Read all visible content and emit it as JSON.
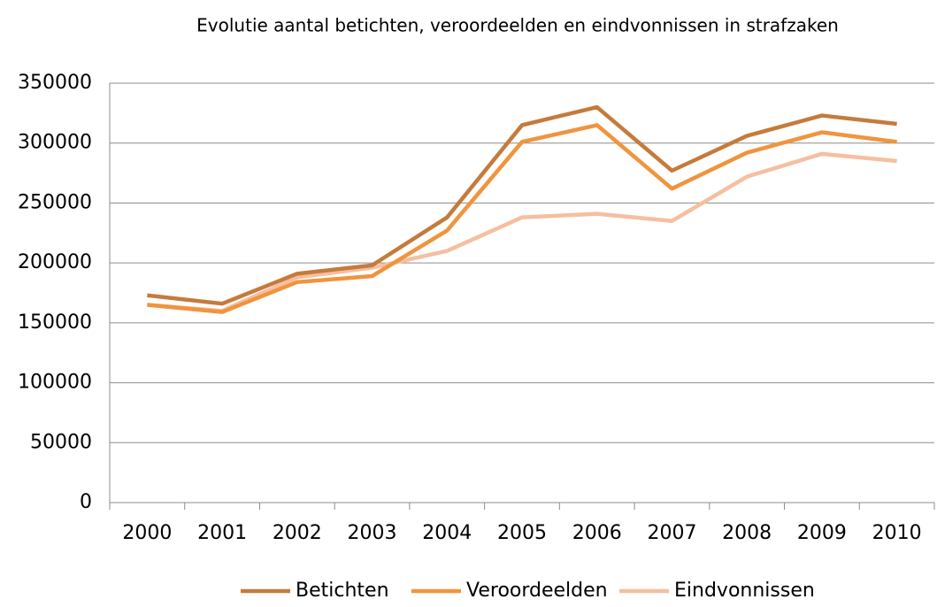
{
  "chart_data": {
    "type": "line",
    "title": "Evolutie aantal betichten, veroordeelden en eindvonnissen in strafzaken",
    "categories": [
      "2000",
      "2001",
      "2002",
      "2003",
      "2004",
      "2005",
      "2006",
      "2007",
      "2008",
      "2009",
      "2010"
    ],
    "series": [
      {
        "name": "Betichten",
        "color": "#c57b3c",
        "values": [
          173000,
          166000,
          191000,
          198000,
          238000,
          315000,
          330000,
          277000,
          306000,
          323000,
          316000
        ]
      },
      {
        "name": "Veroordeelden",
        "color": "#f0943d",
        "values": [
          165000,
          159000,
          184000,
          189000,
          227000,
          301000,
          315000,
          262000,
          292000,
          309000,
          301000
        ]
      },
      {
        "name": "Eindvonnissen",
        "color": "#f5bfa0",
        "values": [
          165000,
          160000,
          188000,
          196000,
          210000,
          238000,
          241000,
          235000,
          272000,
          291000,
          285000
        ]
      }
    ],
    "ylim": [
      0,
      350000
    ],
    "yticks": [
      0,
      50000,
      100000,
      150000,
      200000,
      250000,
      300000,
      350000
    ],
    "grid": true,
    "legend": "bottom"
  }
}
